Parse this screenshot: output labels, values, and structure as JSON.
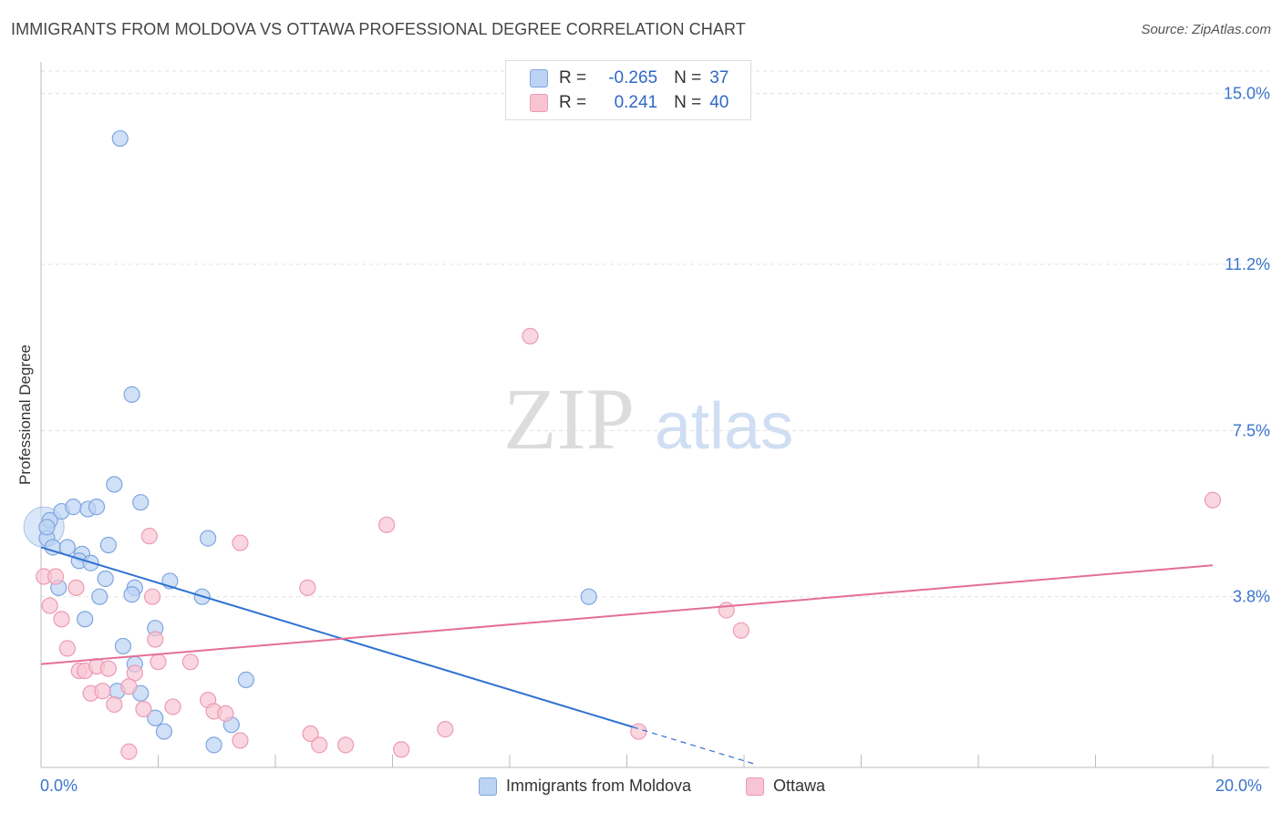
{
  "title": "IMMIGRANTS FROM MOLDOVA VS OTTAWA PROFESSIONAL DEGREE CORRELATION CHART",
  "source": "Source: ZipAtlas.com",
  "watermark": {
    "zip": "ZIP",
    "atlas": "atlas"
  },
  "colors": {
    "blue_fill": "#bcd3f3",
    "blue_stroke": "#7ea6df",
    "blue_line": "#2e72d2",
    "pink_fill": "#f8c4d3",
    "pink_stroke": "#ec9bb4",
    "pink_line": "#e46f96",
    "axis_label": "#3a74cc",
    "grid": "#e0e0e0"
  },
  "legend": {
    "rows": [
      {
        "r_label": "R =",
        "r_value": "-0.265",
        "n_label": "N =",
        "n_value": "37",
        "series": "blue"
      },
      {
        "r_label": "R =",
        "r_value": "0.241",
        "n_label": "N =",
        "n_value": "40",
        "series": "pink"
      }
    ]
  },
  "bottom_legend": [
    "Immigrants from Moldova",
    "Ottawa"
  ],
  "chart_data": {
    "type": "scatter",
    "title": "IMMIGRANTS FROM MOLDOVA VS OTTAWA PROFESSIONAL DEGREE CORRELATION CHART",
    "xlabel": "",
    "ylabel": "Professional Degree",
    "xlim": [
      0,
      20
    ],
    "ylim": [
      0,
      15.5
    ],
    "x_tick_labels": [
      "0.0%",
      "20.0%"
    ],
    "y_ticks": [
      {
        "value": 3.8,
        "label": "3.8%"
      },
      {
        "value": 7.5,
        "label": "7.5%"
      },
      {
        "value": 11.2,
        "label": "11.2%"
      },
      {
        "value": 15.0,
        "label": "15.0%"
      }
    ],
    "series": [
      {
        "name": "Immigrants from Moldova",
        "color": "blue",
        "points": [
          [
            0.15,
            5.5
          ],
          [
            0.1,
            5.1
          ],
          [
            0.2,
            4.9
          ],
          [
            0.35,
            5.7
          ],
          [
            0.55,
            5.8
          ],
          [
            0.8,
            5.75
          ],
          [
            0.95,
            5.8
          ],
          [
            0.45,
            4.9
          ],
          [
            0.7,
            4.75
          ],
          [
            0.65,
            4.6
          ],
          [
            0.85,
            4.55
          ],
          [
            1.15,
            4.95
          ],
          [
            1.25,
            6.3
          ],
          [
            1.7,
            5.9
          ],
          [
            2.85,
            5.1
          ],
          [
            0.3,
            4.0
          ],
          [
            1.1,
            4.2
          ],
          [
            1.6,
            4.0
          ],
          [
            1.55,
            3.85
          ],
          [
            2.2,
            4.15
          ],
          [
            1.0,
            3.8
          ],
          [
            2.75,
            3.8
          ],
          [
            0.75,
            3.3
          ],
          [
            1.95,
            3.1
          ],
          [
            1.4,
            2.7
          ],
          [
            1.6,
            2.3
          ],
          [
            1.3,
            1.7
          ],
          [
            1.7,
            1.65
          ],
          [
            1.95,
            1.1
          ],
          [
            2.1,
            0.8
          ],
          [
            3.5,
            1.95
          ],
          [
            3.25,
            0.95
          ],
          [
            2.95,
            0.5
          ],
          [
            1.35,
            14.0
          ],
          [
            1.55,
            8.3
          ],
          [
            9.35,
            3.8
          ],
          [
            0.1,
            5.35
          ]
        ]
      },
      {
        "name": "Ottawa",
        "color": "pink",
        "points": [
          [
            0.05,
            4.25
          ],
          [
            0.25,
            4.25
          ],
          [
            0.6,
            4.0
          ],
          [
            0.15,
            3.6
          ],
          [
            0.35,
            3.3
          ],
          [
            0.45,
            2.65
          ],
          [
            0.65,
            2.15
          ],
          [
            0.75,
            2.15
          ],
          [
            0.95,
            2.25
          ],
          [
            1.15,
            2.2
          ],
          [
            1.6,
            2.1
          ],
          [
            0.85,
            1.65
          ],
          [
            1.05,
            1.7
          ],
          [
            1.5,
            1.8
          ],
          [
            1.25,
            1.4
          ],
          [
            1.75,
            1.3
          ],
          [
            1.9,
            3.8
          ],
          [
            1.85,
            5.15
          ],
          [
            1.95,
            2.85
          ],
          [
            2.0,
            2.35
          ],
          [
            2.55,
            2.35
          ],
          [
            2.85,
            1.5
          ],
          [
            2.95,
            1.25
          ],
          [
            3.15,
            1.2
          ],
          [
            3.4,
            0.6
          ],
          [
            3.4,
            5.0
          ],
          [
            4.55,
            4.0
          ],
          [
            4.6,
            0.75
          ],
          [
            4.75,
            0.5
          ],
          [
            5.2,
            0.5
          ],
          [
            5.9,
            5.4
          ],
          [
            6.15,
            0.4
          ],
          [
            6.9,
            0.85
          ],
          [
            8.35,
            9.6
          ],
          [
            10.2,
            0.8
          ],
          [
            11.7,
            3.5
          ],
          [
            11.95,
            3.05
          ],
          [
            20.0,
            5.95
          ],
          [
            1.5,
            0.35
          ],
          [
            2.25,
            1.35
          ]
        ]
      }
    ],
    "trend_lines": [
      {
        "series": "Immigrants from Moldova",
        "x": [
          0,
          10.1
        ],
        "y": [
          4.9,
          0.9
        ],
        "dashed_extension_to_x": 12.2
      },
      {
        "series": "Ottawa",
        "x": [
          0,
          20
        ],
        "y": [
          2.3,
          4.5
        ]
      }
    ]
  }
}
